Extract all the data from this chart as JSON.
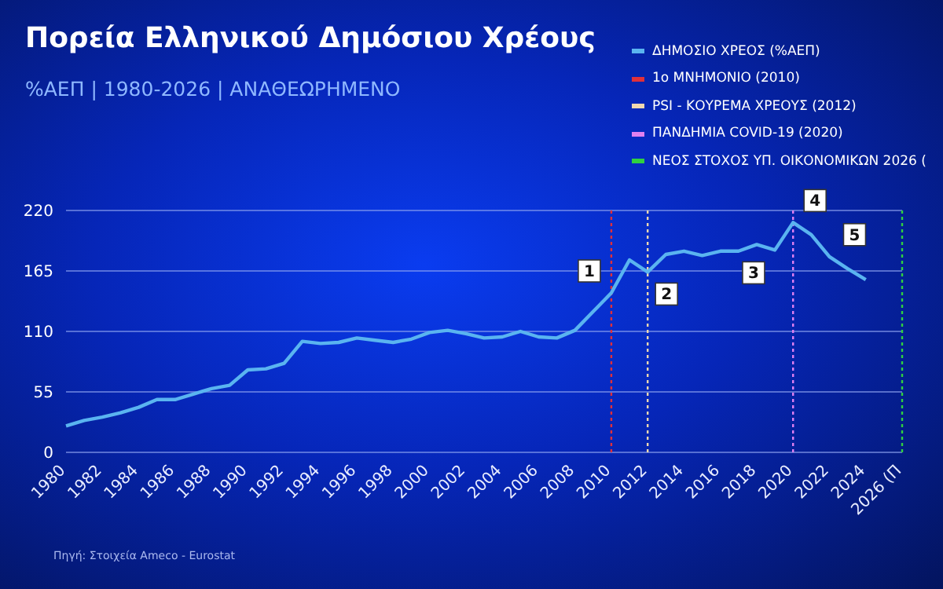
{
  "chart_data": {
    "type": "line",
    "title": "Πορεία Ελληνικού Δημόσιου Χρέους",
    "subtitle": "%ΑΕΠ | 1980-2026 | ΑΝΑΘΕΩΡΗΜΕΝΟ",
    "categories": [
      "1980",
      null,
      "1982",
      null,
      "1984",
      null,
      "1986",
      null,
      "1988",
      null,
      "1990",
      null,
      "1992",
      null,
      "1994",
      null,
      "1996",
      null,
      "1998",
      null,
      "2000",
      null,
      "2002",
      null,
      "2004",
      null,
      "2006",
      null,
      "2008",
      null,
      "2010",
      null,
      "2012",
      null,
      "2014",
      null,
      "2016",
      null,
      "2018",
      null,
      "2020",
      null,
      "2022",
      null,
      "2024",
      null,
      "2026 (Π"
    ],
    "series": [
      {
        "name": "ΔΗΜΟΣΙΟ ΧΡΕΟΣ (%ΑΕΠ)",
        "color": "#5ab4f0",
        "values": [
          24,
          29,
          32,
          36,
          41,
          48,
          48,
          53,
          58,
          61,
          75,
          76,
          81,
          101,
          99,
          100,
          104,
          102,
          100,
          103,
          109,
          111,
          108,
          104,
          105,
          110,
          105,
          104,
          111,
          128,
          145,
          175,
          164,
          180,
          183,
          179,
          183,
          183,
          189,
          184,
          209,
          198,
          178,
          167,
          157,
          null,
          null
        ]
      }
    ],
    "ylim": [
      0,
      220
    ],
    "yticks": [
      0,
      55,
      110,
      165,
      220
    ],
    "grid": "y",
    "legend": "top right",
    "marker": "none",
    "ref_lines": [
      {
        "axis": "x",
        "value": "2010",
        "label": "1ο ΜΝΗΜΟΝΙΟ (2010)",
        "color": "#e0303a",
        "line_style": "dotted"
      },
      {
        "axis": "x",
        "value": "2012",
        "label": "PSI - ΚΟΥΡΕΜΑ ΧΡΕΟΥΣ (2012)",
        "color": "#f0d8b0",
        "line_style": "dotted"
      },
      {
        "axis": "x",
        "value": "2020",
        "label": "ΠΑΝΔΗΜΙΑ COVID-19 (2020)",
        "color": "#e080f0",
        "line_style": "dotted"
      },
      {
        "axis": "x",
        "value": "2026 (Π",
        "label": "ΝΕΟΣ ΣΤΟΧΟΣ ΥΠ. ΟΙΚΟΝΟΜΙΚΩΝ 2026 (",
        "color": "#30d040",
        "line_style": "dotted"
      }
    ],
    "annotations": [
      {
        "text": "1",
        "x": "2010",
        "y": 145
      },
      {
        "text": "2",
        "x": "2012",
        "y": 164
      },
      {
        "text": "3",
        "x": "2018",
        "y": 189
      },
      {
        "text": "4",
        "x": "2020",
        "y": 209
      },
      {
        "text": "5",
        "x": "2022",
        "y": 178
      },
      "Πηγή: Στοιχεία Ameco - Eurostat"
    ]
  }
}
